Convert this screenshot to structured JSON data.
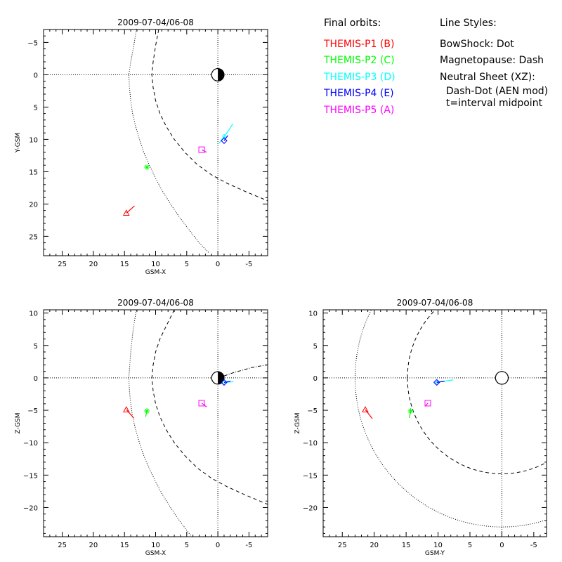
{
  "legend": {
    "orbits_title": "Final orbits:",
    "orbits": [
      {
        "label": "THEMIS-P1 (B)",
        "color": "#ff0000"
      },
      {
        "label": "THEMIS-P2 (C)",
        "color": "#00ff00"
      },
      {
        "label": "THEMIS-P3 (D)",
        "color": "#00ffff"
      },
      {
        "label": "THEMIS-P4 (E)",
        "color": "#0000ff"
      },
      {
        "label": "THEMIS-P5 (A)",
        "color": "#ff00ff"
      }
    ],
    "styles_title": "Line Styles:",
    "styles": [
      "BowShock: Dot",
      "Magnetopause: Dash",
      "Neutral Sheet (XZ):",
      "  Dash-Dot (AEN mod)",
      "  t=interval midpoint"
    ]
  },
  "chart_data": [
    {
      "type": "scatter",
      "title": "2009-07-04/06-08",
      "xlabel": "GSM-X",
      "ylabel": "Y-GSM",
      "xlim": [
        28,
        -8
      ],
      "ylim": [
        28,
        -7
      ],
      "x_ticks": [
        25,
        20,
        15,
        10,
        5,
        0,
        -5
      ],
      "y_ticks": [
        -5,
        0,
        5,
        10,
        15,
        20,
        25
      ],
      "earth": {
        "center": [
          0,
          0
        ],
        "radius": 1.0,
        "night_side_filled": true
      },
      "bow_shock": [
        [
          13.1,
          -7.0
        ],
        [
          13.5,
          -4.5
        ],
        [
          14.0,
          -2.0
        ],
        [
          14.3,
          0.0
        ],
        [
          14.2,
          2.0
        ],
        [
          14.0,
          4.0
        ],
        [
          13.7,
          6.0
        ],
        [
          13.2,
          8.0
        ],
        [
          12.6,
          10.0
        ],
        [
          11.9,
          12.0
        ],
        [
          11.0,
          14.0
        ],
        [
          10.0,
          16.0
        ],
        [
          8.9,
          18.0
        ],
        [
          7.6,
          20.0
        ],
        [
          6.2,
          22.0
        ],
        [
          4.6,
          24.0
        ],
        [
          3.0,
          26.0
        ],
        [
          1.5,
          27.5
        ]
      ],
      "magnetopause": [
        [
          9.5,
          -7.0
        ],
        [
          10.0,
          -4.5
        ],
        [
          10.4,
          -2.0
        ],
        [
          10.6,
          0.0
        ],
        [
          10.4,
          2.0
        ],
        [
          10.0,
          4.0
        ],
        [
          9.3,
          6.0
        ],
        [
          8.3,
          8.0
        ],
        [
          7.0,
          10.0
        ],
        [
          5.3,
          12.0
        ],
        [
          3.3,
          13.9
        ],
        [
          1.0,
          15.5
        ],
        [
          -1.5,
          16.8
        ],
        [
          -4.5,
          18.1
        ],
        [
          -8.0,
          19.5
        ]
      ],
      "spacecraft": [
        {
          "name": "P1",
          "symbol": "triangle",
          "color": "#ff0000",
          "pos": [
            14.7,
            21.4
          ],
          "track": [
            [
              14.7,
              21.4
            ],
            [
              13.4,
              20.3
            ]
          ]
        },
        {
          "name": "P2",
          "symbol": "asterisk",
          "color": "#00ff00",
          "pos": [
            11.4,
            14.3
          ],
          "track": [
            [
              11.4,
              14.3
            ],
            [
              11.4,
              14.3
            ]
          ]
        },
        {
          "name": "P3",
          "symbol": "circle",
          "color": "#00ffff",
          "pos": [
            -1.0,
            9.5
          ],
          "track": [
            [
              -0.2,
              10.6
            ],
            [
              -0.9,
              9.7
            ],
            [
              -1.6,
              8.8
            ],
            [
              -2.4,
              7.6
            ]
          ]
        },
        {
          "name": "P4",
          "symbol": "diamond",
          "color": "#0000ff",
          "pos": [
            -1.0,
            10.2
          ],
          "track": [
            [
              -1.0,
              10.2
            ],
            [
              -1.6,
              9.4
            ]
          ]
        },
        {
          "name": "P5",
          "symbol": "square",
          "color": "#ff00ff",
          "pos": [
            2.6,
            11.6
          ],
          "track": [
            [
              2.6,
              11.6
            ],
            [
              1.8,
              12.0
            ]
          ]
        }
      ]
    },
    {
      "type": "scatter",
      "title": "2009-07-04/06-08",
      "xlabel": "GSM-X",
      "ylabel": "Z-GSM",
      "xlim": [
        28,
        -8
      ],
      "ylim": [
        -24.5,
        10.5
      ],
      "x_ticks": [
        25,
        20,
        15,
        10,
        5,
        0,
        -5
      ],
      "y_ticks": [
        10,
        5,
        0,
        -5,
        -10,
        -15,
        -20
      ],
      "earth": {
        "center": [
          0,
          0
        ],
        "radius": 1.0,
        "night_side_filled": true
      },
      "bow_shock": [
        [
          13.1,
          10.5
        ],
        [
          13.6,
          7.5
        ],
        [
          14.0,
          4.0
        ],
        [
          14.3,
          0.0
        ],
        [
          14.2,
          -2.0
        ],
        [
          14.0,
          -4.0
        ],
        [
          13.7,
          -6.0
        ],
        [
          13.2,
          -8.0
        ],
        [
          12.6,
          -10.0
        ],
        [
          11.9,
          -12.0
        ],
        [
          11.0,
          -14.0
        ],
        [
          10.0,
          -16.0
        ],
        [
          8.9,
          -18.0
        ],
        [
          7.6,
          -20.0
        ],
        [
          6.2,
          -22.0
        ],
        [
          4.6,
          -24.0
        ],
        [
          3.0,
          -26.0
        ]
      ],
      "magnetopause": [
        [
          7.0,
          10.5
        ],
        [
          8.3,
          8.0
        ],
        [
          9.3,
          6.0
        ],
        [
          10.0,
          4.0
        ],
        [
          10.4,
          2.0
        ],
        [
          10.6,
          0.0
        ],
        [
          10.4,
          -2.0
        ],
        [
          10.0,
          -4.0
        ],
        [
          9.3,
          -6.0
        ],
        [
          8.3,
          -8.0
        ],
        [
          7.0,
          -10.0
        ],
        [
          5.3,
          -12.0
        ],
        [
          3.3,
          -13.9
        ],
        [
          1.0,
          -15.5
        ],
        [
          -1.5,
          -16.8
        ],
        [
          -4.5,
          -18.1
        ],
        [
          -8.0,
          -19.5
        ]
      ],
      "neutral_sheet": [
        [
          -1.0,
          0.3
        ],
        [
          -2.5,
          0.8
        ],
        [
          -4.0,
          1.2
        ],
        [
          -5.5,
          1.6
        ],
        [
          -7.0,
          1.85
        ],
        [
          -8.0,
          2.0
        ]
      ],
      "spacecraft": [
        {
          "name": "P1",
          "symbol": "triangle",
          "color": "#ff0000",
          "pos": [
            14.7,
            -4.9
          ],
          "track": [
            [
              14.7,
              -4.9
            ],
            [
              13.5,
              -6.2
            ]
          ]
        },
        {
          "name": "P2",
          "symbol": "asterisk",
          "color": "#00ff00",
          "pos": [
            11.4,
            -5.1
          ],
          "track": [
            [
              11.4,
              -5.1
            ],
            [
              11.6,
              -6.0
            ]
          ]
        },
        {
          "name": "P3",
          "symbol": "circle",
          "color": "#00ffff",
          "pos": [
            -1.0,
            -0.7
          ],
          "track": [
            [
              -1.0,
              -0.7
            ],
            [
              -2.5,
              -0.6
            ]
          ]
        },
        {
          "name": "P4",
          "symbol": "diamond",
          "color": "#0000ff",
          "pos": [
            -1.0,
            -0.7
          ],
          "track": [
            [
              -1.0,
              -0.7
            ],
            [
              -2.0,
              -0.5
            ]
          ]
        },
        {
          "name": "P5",
          "symbol": "square",
          "color": "#ff00ff",
          "pos": [
            2.6,
            -3.9
          ],
          "track": [
            [
              2.6,
              -3.9
            ],
            [
              1.8,
              -4.5
            ]
          ]
        }
      ]
    },
    {
      "type": "scatter",
      "title": "2009-07-04/06-08",
      "xlabel": "GSM-Y",
      "ylabel": "Z-GSM",
      "xlim": [
        28,
        -7
      ],
      "ylim": [
        -24.5,
        10.5
      ],
      "x_ticks": [
        25,
        20,
        15,
        10,
        5,
        0,
        -5
      ],
      "y_ticks": [
        10,
        5,
        0,
        -5,
        -10,
        -15,
        -20
      ],
      "earth": {
        "center": [
          0,
          0
        ],
        "radius": 1.0,
        "night_side_filled": false
      },
      "bow_shock_radius": 23.0,
      "magnetopause_radius": 14.8,
      "spacecraft": [
        {
          "name": "P1",
          "symbol": "triangle",
          "color": "#ff0000",
          "pos": [
            21.4,
            -4.9
          ],
          "track": [
            [
              21.4,
              -4.9
            ],
            [
              20.3,
              -6.3
            ]
          ]
        },
        {
          "name": "P2",
          "symbol": "asterisk",
          "color": "#00ff00",
          "pos": [
            14.3,
            -5.1
          ],
          "track": [
            [
              14.3,
              -5.1
            ],
            [
              14.5,
              -6.2
            ]
          ]
        },
        {
          "name": "P3",
          "symbol": "circle",
          "color": "#00ffff",
          "pos": [
            10.2,
            -0.7
          ],
          "track": [
            [
              10.2,
              -0.7
            ],
            [
              7.6,
              -0.3
            ]
          ]
        },
        {
          "name": "P4",
          "symbol": "diamond",
          "color": "#0000ff",
          "pos": [
            10.2,
            -0.7
          ],
          "track": [
            [
              10.2,
              -0.7
            ],
            [
              9.0,
              -0.5
            ]
          ]
        },
        {
          "name": "P5",
          "symbol": "square",
          "color": "#ff00ff",
          "pos": [
            11.6,
            -3.9
          ],
          "track": [
            [
              11.6,
              -3.9
            ],
            [
              12.0,
              -4.4
            ]
          ]
        }
      ]
    }
  ]
}
